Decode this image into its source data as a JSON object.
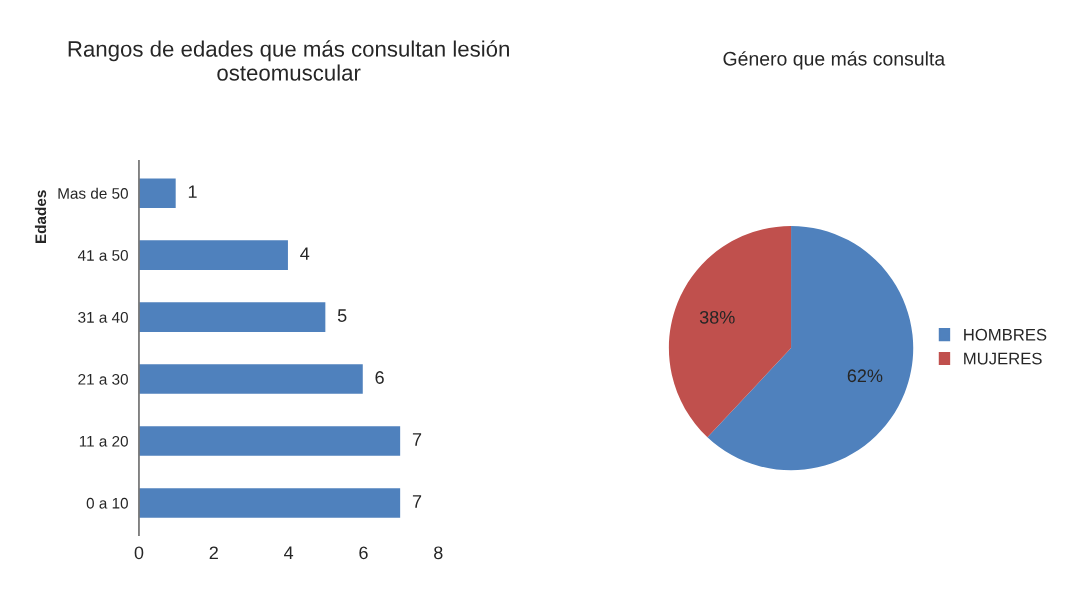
{
  "chart_data": [
    {
      "type": "bar",
      "title": "Rangos de edades que más consultan lesión osteomuscular",
      "ylabel": "Edades",
      "orientation": "horizontal",
      "categories": [
        "Mas de 50",
        "41 a 50",
        "31 a 40",
        "21 a 30",
        "11 a 20",
        "0 a 10"
      ],
      "values": [
        1,
        4,
        5,
        6,
        7,
        7
      ],
      "color": "#4f81bd",
      "xlim": [
        0,
        8
      ],
      "xticks": [
        0,
        2,
        4,
        6,
        8
      ],
      "data_labels": true,
      "grid": false
    },
    {
      "type": "pie",
      "title": "Género que más consulta",
      "categories": [
        "HOMBRES",
        "MUJERES"
      ],
      "values": [
        62,
        38
      ],
      "colors": [
        "#4f81bd",
        "#c0504d"
      ],
      "value_labels": [
        "62%",
        "38%"
      ],
      "legend": "right"
    }
  ]
}
